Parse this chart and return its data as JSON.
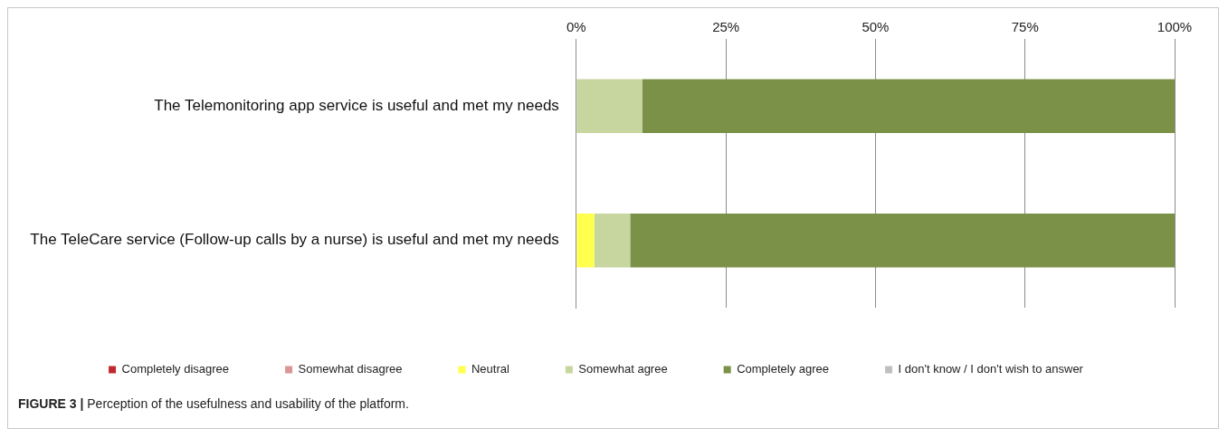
{
  "chart_data": {
    "type": "bar",
    "orientation": "horizontal",
    "stacked": true,
    "categories": [
      "The Telemonitoring app service is useful and met my needs",
      "The TeleCare service (Follow-up calls by a nurse) is useful and met my needs"
    ],
    "series": [
      {
        "name": "Completely disagree",
        "color": "#c0282d",
        "values": [
          0,
          0
        ]
      },
      {
        "name": "Somewhat disagree",
        "color": "#d99694",
        "values": [
          0,
          0
        ]
      },
      {
        "name": "Neutral",
        "color": "#ffff4d",
        "values": [
          0,
          3
        ]
      },
      {
        "name": "Somewhat agree",
        "color": "#c6d69e",
        "values": [
          11,
          6
        ]
      },
      {
        "name": "Completely agree",
        "color": "#7b9147",
        "values": [
          89,
          91
        ]
      },
      {
        "name": "I don't know / I don't wish to answer",
        "color": "#bfbfbf",
        "values": [
          0,
          0
        ]
      }
    ],
    "xlim": [
      0,
      100
    ],
    "xticks": [
      {
        "value": 0,
        "label": "0%"
      },
      {
        "value": 25,
        "label": "25%"
      },
      {
        "value": 50,
        "label": "50%"
      },
      {
        "value": 75,
        "label": "75%"
      },
      {
        "value": 100,
        "label": "100%"
      }
    ],
    "grid": "x",
    "legend": "bottom",
    "annotations": [
      "FIGURE 3 | Perception of the usefulness and usability of the platform."
    ]
  }
}
